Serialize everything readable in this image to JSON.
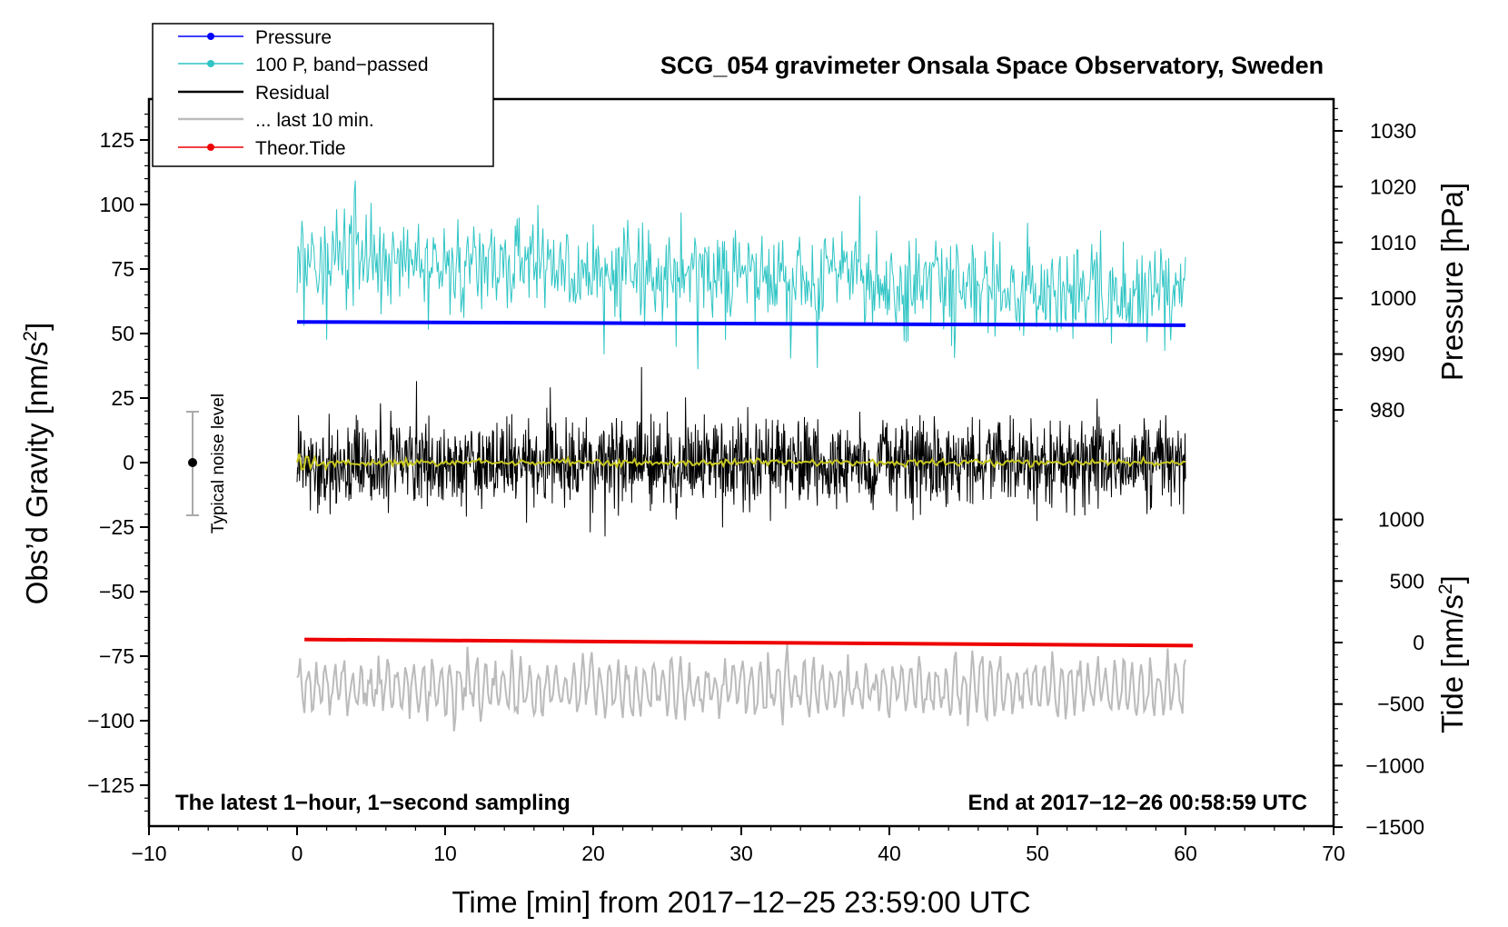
{
  "chart_data": {
    "type": "line",
    "title": "SCG_054 gravimeter Onsala Space Observatory, Sweden",
    "xlabel": "Time [min] from 2017−12−25 23:59:00 UTC",
    "ylabel_left_main": "Obs’d Gravity [nm/s",
    "ylabel_left_sup": "2",
    "ylabel_left_close": "]",
    "ylabel_right_pressure": "Pressure [hPa]",
    "ylabel_right_tide_main": "Tide [nm/s",
    "ylabel_right_tide_sup": "2",
    "ylabel_right_tide_close": "]",
    "xlim": [
      -10,
      70
    ],
    "ylim_gravity": [
      -140,
      140
    ],
    "ylim_pressure_ticks": [
      980,
      990,
      1000,
      1010,
      1020,
      1030
    ],
    "ylim_tide_ticks": [
      -1500,
      -1000,
      -500,
      0,
      500,
      1000
    ],
    "x_ticks": [
      -10,
      0,
      10,
      20,
      30,
      40,
      50,
      60,
      70
    ],
    "x_tick_labels": [
      "−10",
      "0",
      "10",
      "20",
      "30",
      "40",
      "50",
      "60",
      "70"
    ],
    "y_ticks_gravity": [
      -125,
      -100,
      -75,
      -50,
      -25,
      0,
      25,
      50,
      75,
      100,
      125
    ],
    "y_tick_labels_gravity": [
      "−125",
      "−100",
      "−75",
      "−50",
      "−25",
      "0",
      "25",
      "50",
      "75",
      "100",
      "125"
    ],
    "pressure_tick_labels": [
      "980",
      "990",
      "1000",
      "1010",
      "1020",
      "1030"
    ],
    "tide_tick_labels": [
      "−1500",
      "−1000",
      "−500",
      "0",
      "500",
      "1000"
    ],
    "legend": [
      {
        "label": "Pressure",
        "color": "#0000ff",
        "marker": "dot"
      },
      {
        "label": "100 P, band−passed",
        "color": "#2ec4c4",
        "marker": "dot"
      },
      {
        "label": "Residual",
        "color": "#000000",
        "marker": "none"
      },
      {
        "label": "... last 10 min.",
        "color": "#bbbbbb",
        "marker": "none"
      },
      {
        "label": "Theor.Tide",
        "color": "#ee0000",
        "marker": "dot"
      }
    ],
    "series": [
      {
        "name": "Pressure",
        "color": "#0000ff",
        "axis": "gravity",
        "x_start": 0,
        "x_end": 60,
        "y_start": 54.5,
        "y_end": 53.2
      },
      {
        "name": "100 P, band-passed",
        "color": "#2ec4c4",
        "axis": "gravity",
        "x_start": 0,
        "x_end": 60,
        "center_start": 80,
        "center_end": 64,
        "amplitude": 12
      },
      {
        "name": "Residual",
        "color": "#000000",
        "axis": "gravity",
        "x_start": 0,
        "x_end": 60,
        "center": 0,
        "amplitude": 12
      },
      {
        "name": "Residual smoothed",
        "color": "#c8c820",
        "axis": "gravity",
        "x_start": 0,
        "x_end": 60,
        "center": 0,
        "amplitude": 1.2
      },
      {
        "name": "Theor.Tide",
        "color": "#ee0000",
        "axis": "tide",
        "x_start": 0.5,
        "x_end": 60.5,
        "y_start": 25,
        "y_end": -25
      },
      {
        "name": "... last 10 min.",
        "color": "#bbbbbb",
        "axis": "gravity",
        "x_start": 0,
        "x_end": 60,
        "center": -87,
        "amplitude": 9
      }
    ],
    "noise_bar": {
      "x": -7,
      "center": 0,
      "low": -20,
      "high": 20,
      "label": "Typical noise level"
    },
    "annotation_left": "The latest 1−hour, 1−second sampling",
    "annotation_right": "End at 2017−12−26 00:58:59 UTC"
  }
}
